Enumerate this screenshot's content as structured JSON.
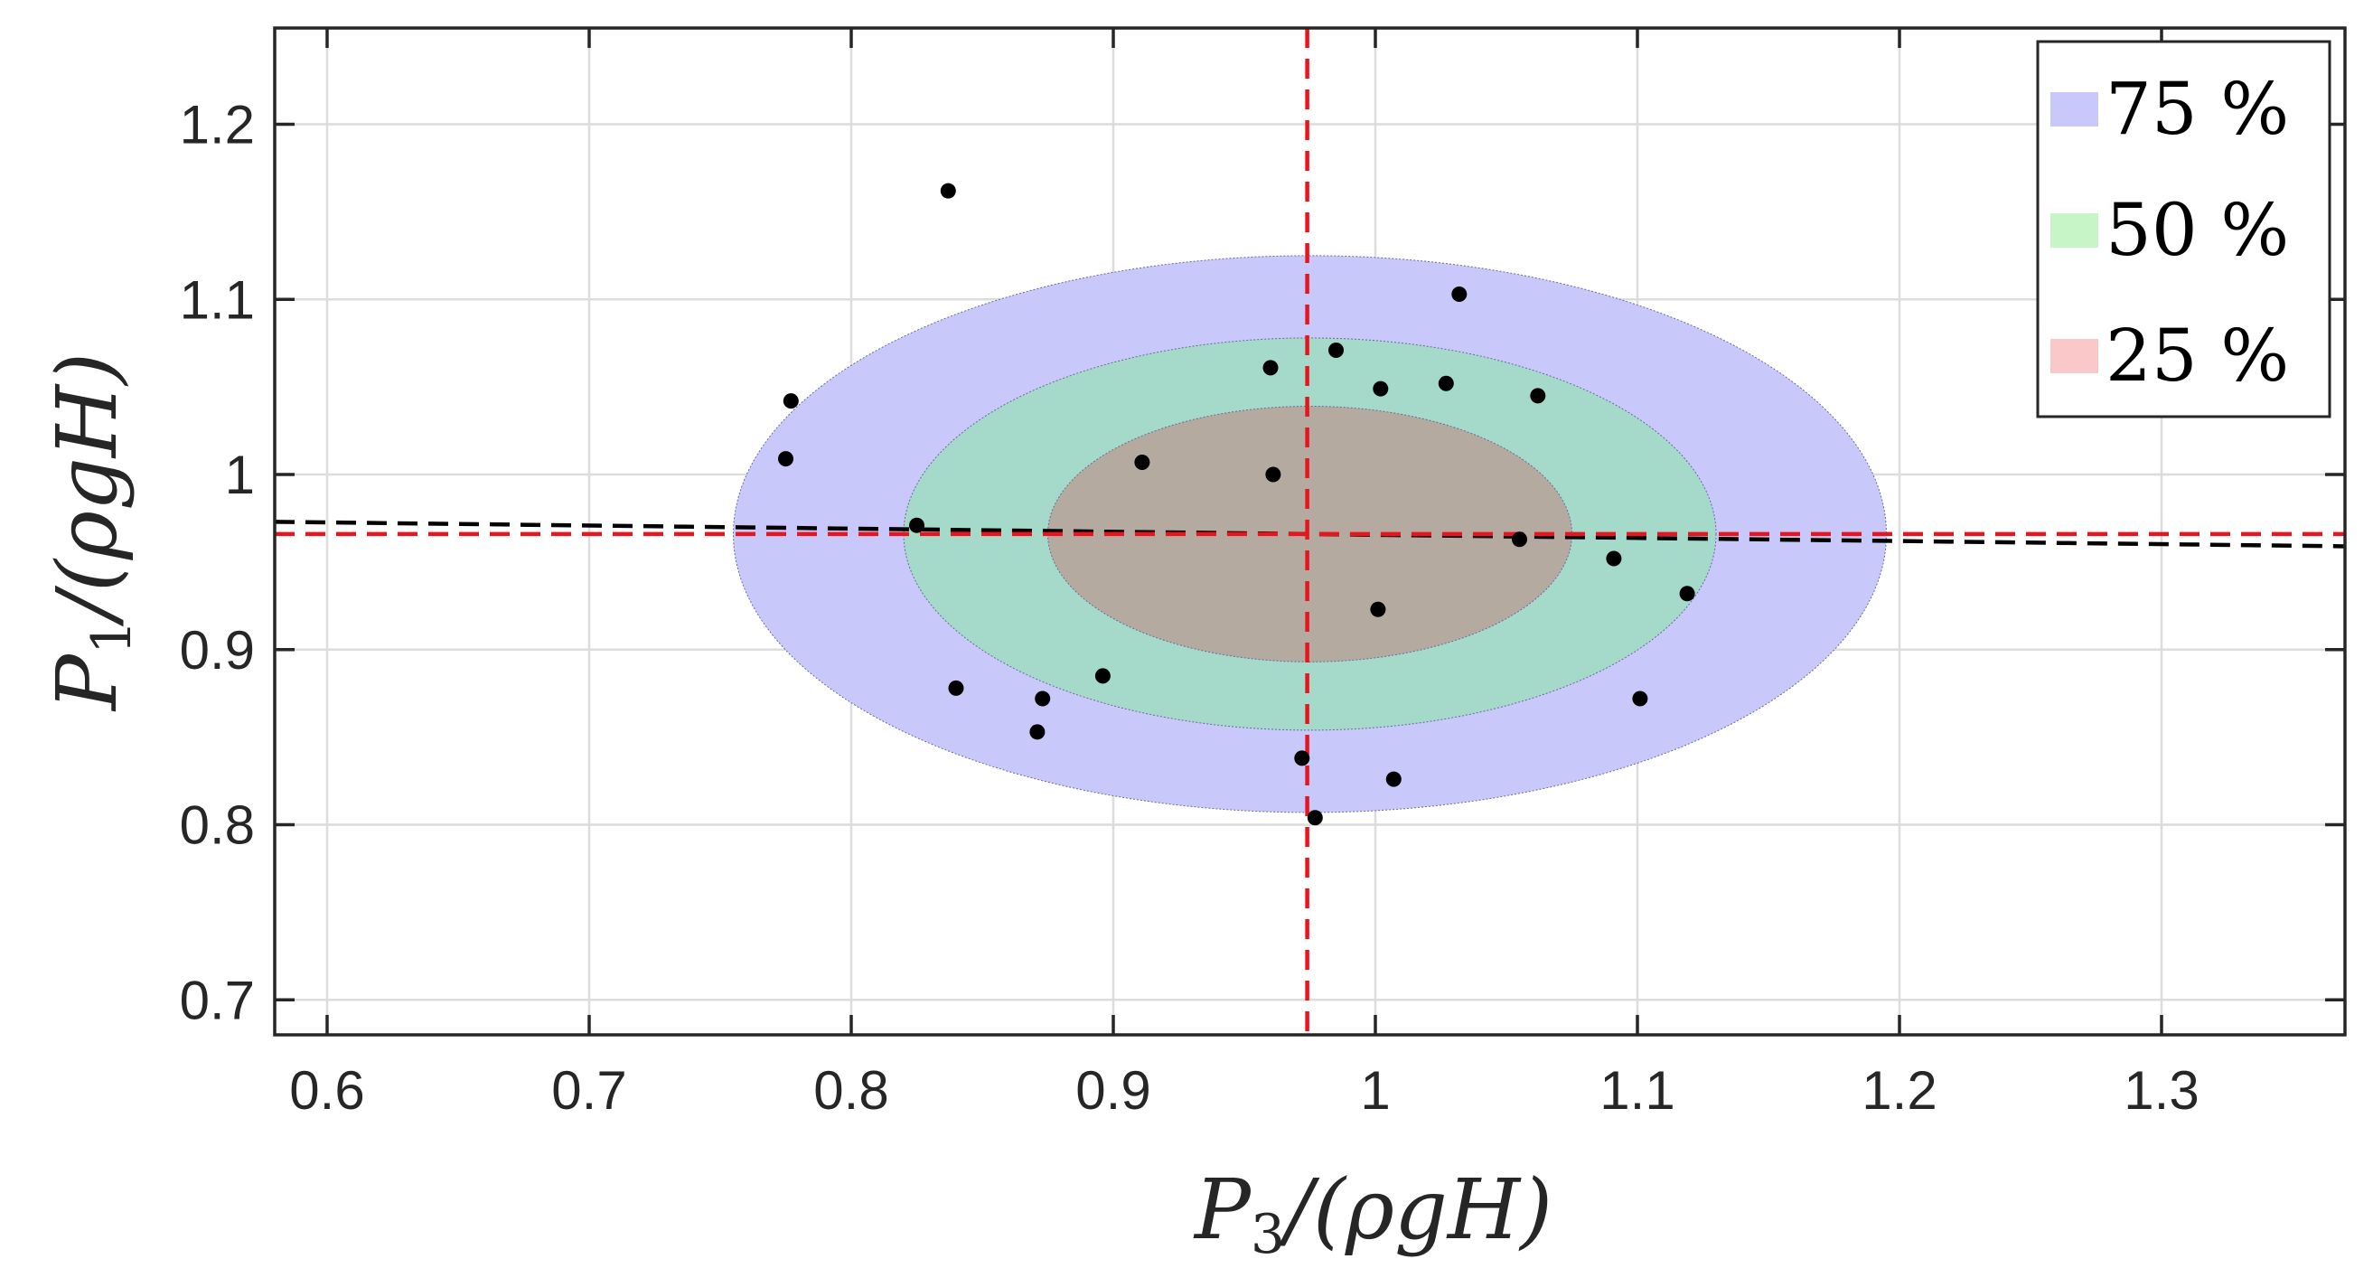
{
  "chart_data": {
    "type": "scatter",
    "xlabel": "P3/(ρgH)",
    "ylabel": "P1/(ρgH)",
    "axis_labels": {
      "x": {
        "var": "P",
        "sub": "3",
        "rest": "/(ρgH)"
      },
      "y": {
        "var": "P",
        "sub": "1",
        "rest": "/(ρgH)"
      }
    },
    "xlim": [
      0.58,
      1.37
    ],
    "ylim": [
      0.68,
      1.255
    ],
    "x_ticks": [
      0.6,
      0.7,
      0.8,
      0.9,
      1.0,
      1.1,
      1.2,
      1.3
    ],
    "x_tick_labels": [
      "0.6",
      "0.7",
      "0.8",
      "0.9",
      "1",
      "1.1",
      "1.2",
      "1.3"
    ],
    "y_ticks": [
      0.7,
      0.8,
      0.9,
      1.0,
      1.1,
      1.2
    ],
    "y_tick_labels": [
      "0.7",
      "0.8",
      "0.9",
      "1",
      "1.1",
      "1.2"
    ],
    "grid": true,
    "legend_position": "top-right",
    "ellipses": [
      {
        "label": "75 %",
        "cx": 0.975,
        "cy": 0.966,
        "rx": 0.22,
        "ry": 0.159,
        "fill": "#c8c8fa",
        "swatch": "#c8c8fa"
      },
      {
        "label": "50 %",
        "cx": 0.975,
        "cy": 0.966,
        "rx": 0.155,
        "ry": 0.112,
        "fill": "#a5d9c9",
        "swatch": "#c8f5c8"
      },
      {
        "label": "25 %",
        "cx": 0.975,
        "cy": 0.966,
        "rx": 0.1,
        "ry": 0.073,
        "fill": "#b4aaa0",
        "swatch": "#fac8c8"
      }
    ],
    "points": [
      {
        "x": 0.837,
        "y": 1.162
      },
      {
        "x": 0.777,
        "y": 1.042
      },
      {
        "x": 0.775,
        "y": 1.009
      },
      {
        "x": 0.825,
        "y": 0.971
      },
      {
        "x": 0.84,
        "y": 0.878
      },
      {
        "x": 0.873,
        "y": 0.872
      },
      {
        "x": 0.871,
        "y": 0.853
      },
      {
        "x": 0.896,
        "y": 0.885
      },
      {
        "x": 0.911,
        "y": 1.007
      },
      {
        "x": 0.96,
        "y": 1.061
      },
      {
        "x": 0.961,
        "y": 1.0
      },
      {
        "x": 0.985,
        "y": 1.071
      },
      {
        "x": 1.002,
        "y": 1.049
      },
      {
        "x": 1.027,
        "y": 1.052
      },
      {
        "x": 1.032,
        "y": 1.103
      },
      {
        "x": 1.062,
        "y": 1.045
      },
      {
        "x": 1.055,
        "y": 0.963
      },
      {
        "x": 1.091,
        "y": 0.952
      },
      {
        "x": 1.119,
        "y": 0.932
      },
      {
        "x": 1.101,
        "y": 0.872
      },
      {
        "x": 1.001,
        "y": 0.923
      },
      {
        "x": 0.972,
        "y": 0.838
      },
      {
        "x": 1.007,
        "y": 0.826
      },
      {
        "x": 0.977,
        "y": 0.804
      }
    ],
    "reference_lines": [
      {
        "orientation": "vertical",
        "value": 0.974,
        "color": "#e8141e"
      },
      {
        "orientation": "horizontal",
        "value": 0.966,
        "color": "#e8141e"
      }
    ],
    "trend_line": {
      "x": [
        0.58,
        1.37
      ],
      "y": [
        0.973,
        0.959
      ],
      "color": "#000000"
    }
  }
}
